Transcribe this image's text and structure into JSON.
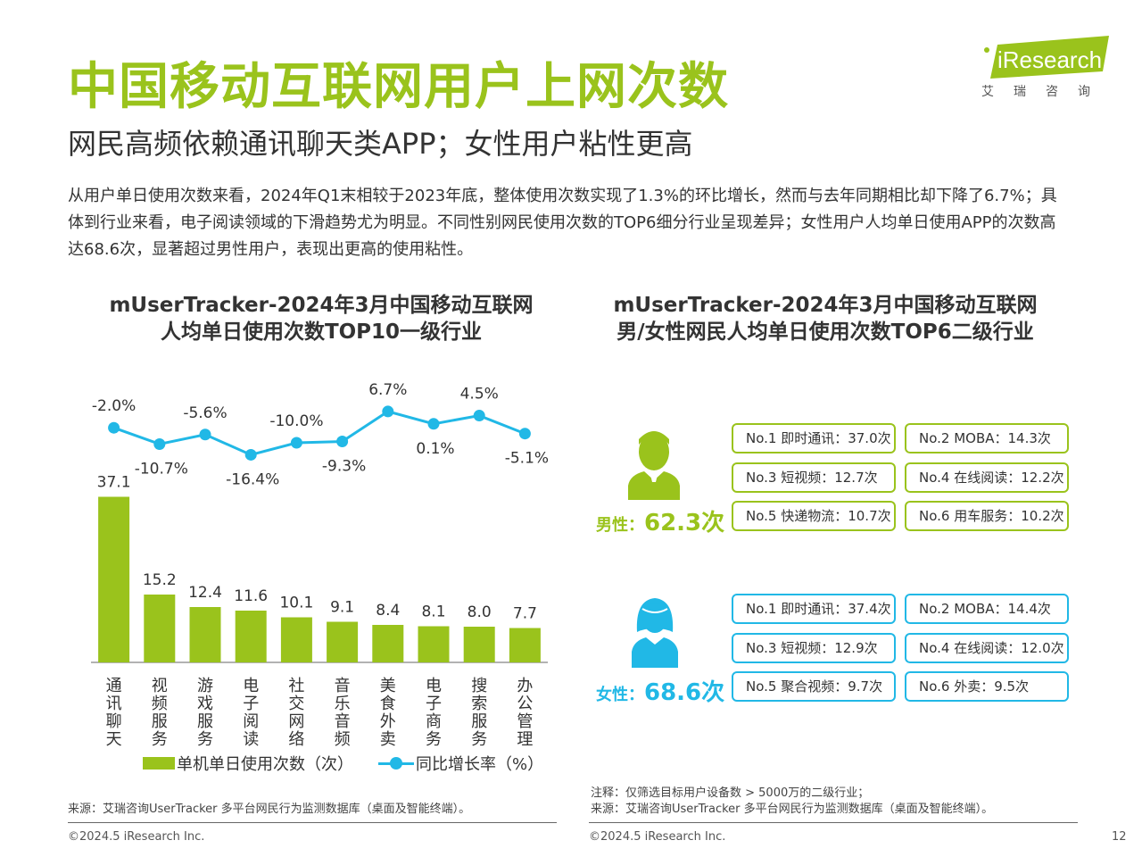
{
  "header": {
    "title": "中国移动互联网用户上网次数",
    "subtitle": "网民高频依赖通讯聊天类APP；女性用户粘性更高",
    "summary": "从用户单日使用次数来看，2024年Q1末相较于2023年底，整体使用次数实现了1.3%的环比增长，然而与去年同期相比却下降了6.7%；具体到行业来看，电子阅读领域的下滑趋势尤为明显。不同性别网民使用次数的TOP6细分行业呈现差异；女性用户人均单日使用APP的次数高达68.6次，显著超过男性用户，表现出更高的使用粘性。"
  },
  "logo": {
    "brand": "iResearch",
    "cn": "艾瑞咨询",
    "color": "#9ac31c"
  },
  "left_chart_title": {
    "line1": "mUserTracker-2024年3月中国移动互联网",
    "line2": "人均单日使用次数TOP10一级行业"
  },
  "right_chart_title": {
    "line1": "mUserTracker-2024年3月中国移动互联网",
    "line2": "男/女性网民人均单日使用次数TOP6二级行业"
  },
  "chart_data": {
    "type": "bar",
    "categories": [
      "通讯聊天",
      "视频服务",
      "游戏服务",
      "电子阅读",
      "社交网络",
      "音乐音频",
      "美食外卖",
      "电子商务",
      "搜索服务",
      "办公管理"
    ],
    "series": [
      {
        "name": "单机单日使用次数（次）",
        "type": "bar",
        "values": [
          37.1,
          15.2,
          12.4,
          11.6,
          10.1,
          9.1,
          8.4,
          8.1,
          8.0,
          7.7
        ],
        "labels": [
          "37.1",
          "15.2",
          "12.4",
          "11.6",
          "10.1",
          "9.1",
          "8.4",
          "8.1",
          "8.0",
          "7.7"
        ],
        "color": "#9ac31c"
      },
      {
        "name": "同比增长率（%）",
        "type": "line",
        "values": [
          -2.0,
          -10.7,
          -5.6,
          -16.4,
          -10.0,
          -9.3,
          6.7,
          0.1,
          4.5,
          -5.1
        ],
        "labels": [
          "-2.0%",
          "-10.7%",
          "-5.6%",
          "-16.4%",
          "-10.0%",
          "-9.3%",
          "6.7%",
          "0.1%",
          "4.5%",
          "-5.1%"
        ],
        "color": "#21b8e6"
      }
    ],
    "legend_position": "bottom"
  },
  "gender": {
    "male": {
      "label": "男性：",
      "value": "62.3次",
      "color": "#9ac31c",
      "items": [
        "No.1 即时通讯：37.0次",
        "No.2 MOBA：14.3次",
        "No.3 短视频：12.7次",
        "No.4 在线阅读：12.2次",
        "No.5 快递物流：10.7次",
        "No.6 用车服务：10.2次"
      ]
    },
    "female": {
      "label": "女性：",
      "value": "68.6次",
      "color": "#21b8e6",
      "items": [
        "No.1 即时通讯：37.4次",
        "No.2 MOBA：14.4次",
        "No.3 短视频：12.9次",
        "No.4 在线阅读：12.0次",
        "No.5 聚合视频：9.7次",
        "No.6 外卖：9.5次"
      ]
    }
  },
  "footer": {
    "source_left": "来源：艾瑞咨询UserTracker 多平台网民行为监测数据库（桌面及智能终端）。",
    "note_right": "注释：仅筛选目标用户设备数 > 5000万的二级行业；",
    "source_right": "来源：艾瑞咨询UserTracker 多平台网民行为监测数据库（桌面及智能终端）。",
    "copyright": "©2024.5 iResearch Inc.",
    "page": "12"
  }
}
